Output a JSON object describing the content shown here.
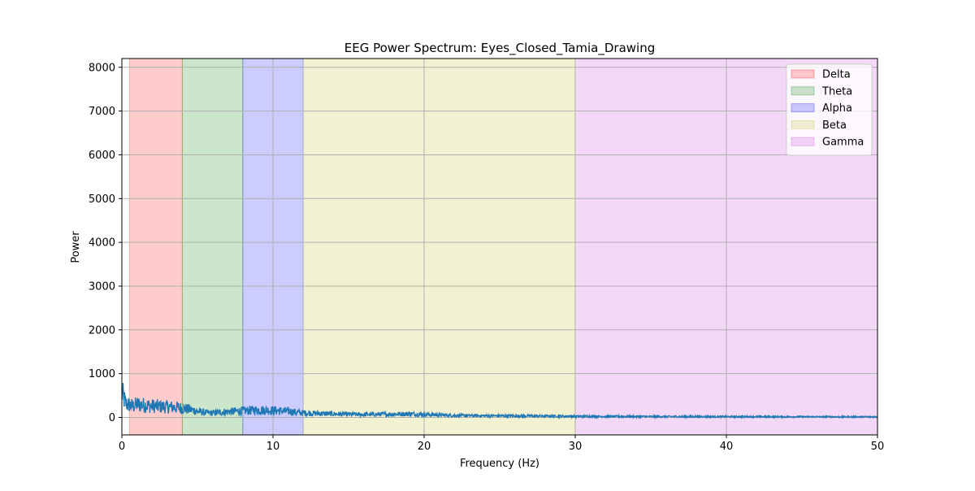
{
  "chart_data": {
    "type": "line",
    "title": "EEG Power Spectrum: Eyes_Closed_Tamia_Drawing",
    "xlabel": "Frequency (Hz)",
    "ylabel": "Power",
    "xlim": [
      0,
      50
    ],
    "ylim": [
      -400,
      8200
    ],
    "xticks": [
      0,
      10,
      20,
      30,
      40,
      50
    ],
    "yticks": [
      0,
      1000,
      2000,
      3000,
      4000,
      5000,
      6000,
      7000,
      8000
    ],
    "grid": true,
    "legend_position": "top-right",
    "bands": [
      {
        "name": "Delta",
        "range": [
          0.5,
          4
        ],
        "color": "#ff0000"
      },
      {
        "name": "Theta",
        "range": [
          4,
          8
        ],
        "color": "#008000"
      },
      {
        "name": "Alpha",
        "range": [
          8,
          12
        ],
        "color": "#0000ff"
      },
      {
        "name": "Beta",
        "range": [
          12,
          30
        ],
        "color": "#bcbd22"
      },
      {
        "name": "Gamma",
        "range": [
          30,
          50
        ],
        "color": "#c13fd8"
      }
    ],
    "series": [
      {
        "color": "#1f77b4",
        "x": [
          0,
          0.25,
          0.5,
          0.75,
          1,
          1.5,
          2,
          2.5,
          3,
          3.5,
          4,
          4.5,
          5,
          5.5,
          6,
          6.5,
          7,
          7.5,
          8,
          8.5,
          9,
          9.5,
          10,
          10.5,
          11,
          11.5,
          12,
          13,
          14,
          15,
          16,
          17,
          18,
          19,
          20,
          21,
          22,
          23,
          24,
          25,
          26,
          27,
          28,
          29,
          30,
          32,
          34,
          36,
          38,
          40,
          42,
          44,
          46,
          48,
          50
        ],
        "y": [
          560,
          320,
          280,
          260,
          300,
          280,
          260,
          250,
          240,
          230,
          210,
          180,
          140,
          110,
          100,
          120,
          130,
          140,
          150,
          160,
          170,
          165,
          160,
          150,
          140,
          120,
          100,
          90,
          80,
          70,
          65,
          70,
          75,
          80,
          70,
          55,
          45,
          40,
          38,
          36,
          35,
          33,
          30,
          28,
          25,
          22,
          20,
          18,
          17,
          16,
          15,
          14,
          13,
          12,
          12
        ]
      }
    ]
  }
}
